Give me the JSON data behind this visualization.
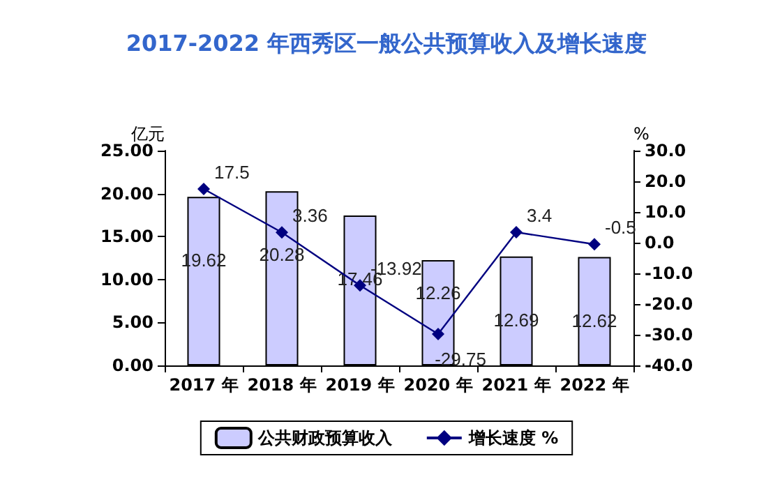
{
  "chart_data": {
    "type": "bar",
    "title": "2017-2022 年西秀区一般公共预算收入及增长速度",
    "ylabel": "亿元",
    "y2label": "%",
    "categories": [
      "2017 年",
      "2018 年",
      "2019 年",
      "2020 年",
      "2021 年",
      "2022 年"
    ],
    "series": [
      {
        "name": "公共财政预算收入",
        "color": "#ccccff",
        "values": [
          19.62,
          20.28,
          17.46,
          12.26,
          12.69,
          12.62
        ]
      },
      {
        "name": "增长速度 %",
        "type": "line",
        "axis": "y2",
        "color": "#000080",
        "values": [
          17.5,
          3.36,
          -13.92,
          -29.75,
          3.4,
          -0.5
        ]
      }
    ],
    "ylim": [
      0,
      25
    ],
    "yticks": [
      {
        "value": 0,
        "label": "0.00"
      },
      {
        "value": 5,
        "label": "5.00"
      },
      {
        "value": 10,
        "label": "10.00"
      },
      {
        "value": 15,
        "label": "15.00"
      },
      {
        "value": 20,
        "label": "20.00"
      },
      {
        "value": 25,
        "label": "25.00"
      }
    ],
    "y2lim": [
      -40,
      30
    ],
    "y2ticks": [
      {
        "value": -40,
        "label": "-40.0"
      },
      {
        "value": -30,
        "label": "-30.0"
      },
      {
        "value": -20,
        "label": "-20.0"
      },
      {
        "value": -10,
        "label": "-10.0"
      },
      {
        "value": 0,
        "label": "0.0"
      },
      {
        "value": 10,
        "label": "10.0"
      },
      {
        "value": 20,
        "label": "20.0"
      },
      {
        "value": 30,
        "label": "30.0"
      }
    ],
    "data_labels": true,
    "grid": false,
    "legend": "bottom",
    "marker": "diamond",
    "line_style": "solid"
  }
}
